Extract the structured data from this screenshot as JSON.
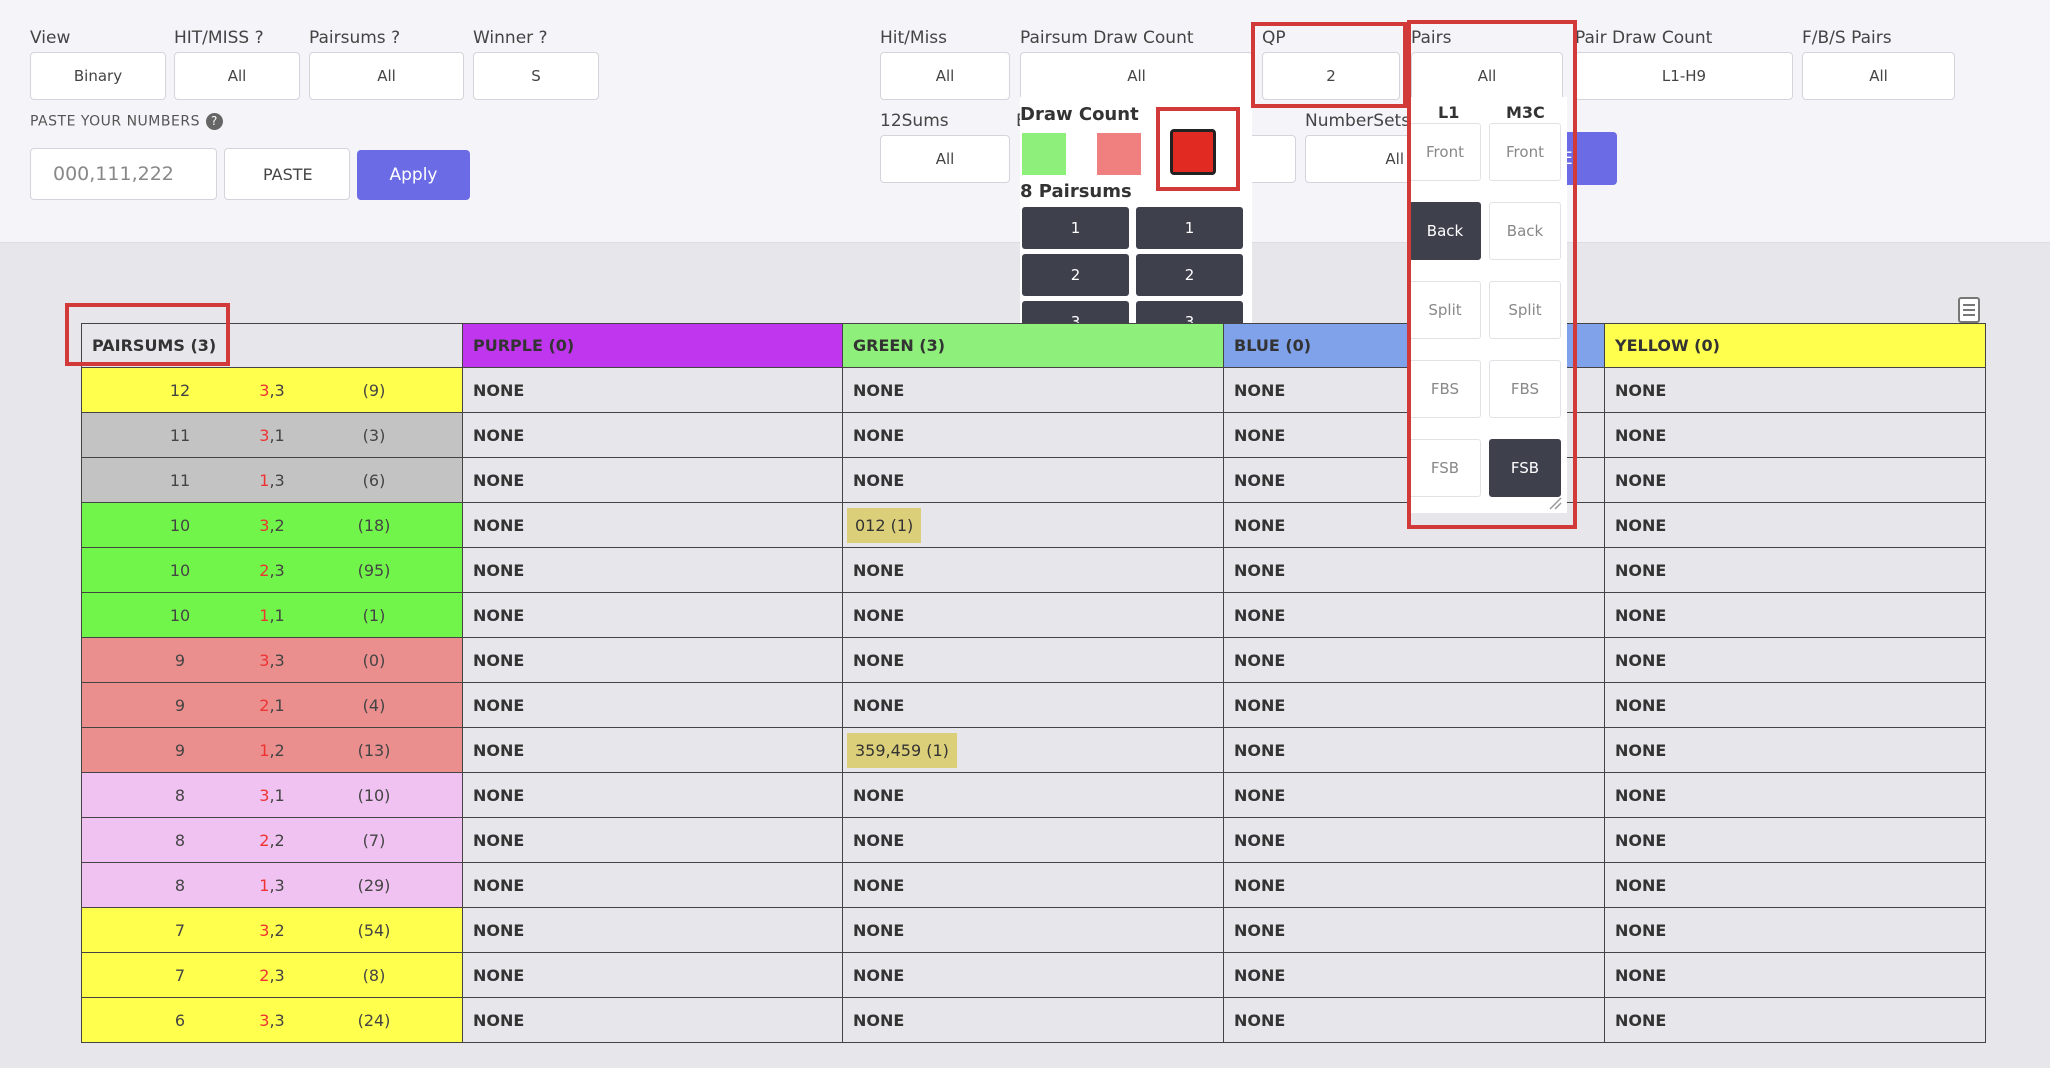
{
  "filters": {
    "view": {
      "label": "View",
      "value": "Binary"
    },
    "hit_miss": {
      "label": "HIT/MISS ?",
      "value": "All"
    },
    "pairsums": {
      "label": "Pairsums ?",
      "value": "All"
    },
    "winner": {
      "label": "Winner ?",
      "value": "S"
    },
    "hit_miss2": {
      "label": "Hit/Miss",
      "value": "All"
    },
    "pairsum_draw_count": {
      "label": "Pairsum Draw Count",
      "value": "All"
    },
    "qp": {
      "label": "QP",
      "value": "2"
    },
    "pairs": {
      "label": "Pairs",
      "value": "All"
    },
    "pair_draw_count": {
      "label": "Pair Draw Count",
      "value": "L1-H9"
    },
    "fbs_pairs": {
      "label": "F/B/S Pairs",
      "value": "All"
    },
    "twelve_sums": {
      "label": "12Sums",
      "value": "All"
    },
    "number_sets": {
      "label": "NumberSets",
      "value": "All"
    },
    "partial_e": "E",
    "partial_button": "E"
  },
  "paste": {
    "label": "PASTE YOUR NUMBERS",
    "placeholder": "000,111,222",
    "paste_button": "PASTE",
    "apply_button": "Apply"
  },
  "draw_count_panel": {
    "title": "Draw Count",
    "swatch_colors": [
      "#8ef07a",
      "#f08080",
      "#e02a22"
    ],
    "pairsums_title": "8 Pairsums",
    "buttons_left": [
      "1",
      "2",
      "3"
    ],
    "buttons_right": [
      "1",
      "2",
      "3"
    ]
  },
  "pairs_panel": {
    "col1": "L1",
    "col2": "M3C",
    "rows": [
      {
        "left": "Front",
        "right": "Front",
        "left_on": false,
        "right_on": false
      },
      {
        "left": "Back",
        "right": "Back",
        "left_on": true,
        "right_on": false
      },
      {
        "left": "Split",
        "right": "Split",
        "left_on": false,
        "right_on": false
      },
      {
        "left": "FBS",
        "right": "FBS",
        "left_on": false,
        "right_on": false
      },
      {
        "left": "FSB",
        "right": "FSB",
        "left_on": false,
        "right_on": true
      }
    ]
  },
  "table": {
    "headers": {
      "pairsums": "PAIRSUMS (3)",
      "purple": "PURPLE (0)",
      "green": "GREEN (3)",
      "blue": "BLUE (0)",
      "yellow": "YELLOW (0)"
    },
    "header_colors": {
      "pairsums": "#e6e6eb",
      "purple": "#c036ee",
      "green": "#8ef07a",
      "blue": "#7fa2ea",
      "yellow": "#ffff4d"
    },
    "rows": [
      {
        "sum": "12",
        "pair_a": "3",
        "pair_b": ",3",
        "count": "(9)",
        "color": "#ffff4d",
        "green": ""
      },
      {
        "sum": "11",
        "pair_a": "3",
        "pair_b": ",1",
        "count": "(3)",
        "color": "#c3c3c3",
        "green": ""
      },
      {
        "sum": "11",
        "pair_a": "1",
        "pair_b": ",3",
        "count": "(6)",
        "color": "#c3c3c3",
        "green": ""
      },
      {
        "sum": "10",
        "pair_a": "3",
        "pair_b": ",2",
        "count": "(18)",
        "color": "#72f54a",
        "green": "012 (1)"
      },
      {
        "sum": "10",
        "pair_a": "2",
        "pair_b": ",3",
        "count": "(95)",
        "color": "#72f54a",
        "green": ""
      },
      {
        "sum": "10",
        "pair_a": "1",
        "pair_b": ",1",
        "count": "(1)",
        "color": "#72f54a",
        "green": ""
      },
      {
        "sum": "9",
        "pair_a": "3",
        "pair_b": ",3",
        "count": "(0)",
        "color": "#ea8e8e",
        "green": ""
      },
      {
        "sum": "9",
        "pair_a": "2",
        "pair_b": ",1",
        "count": "(4)",
        "color": "#ea8e8e",
        "green": ""
      },
      {
        "sum": "9",
        "pair_a": "1",
        "pair_b": ",2",
        "count": "(13)",
        "color": "#ea8e8e",
        "green": "359,459 (1)"
      },
      {
        "sum": "8",
        "pair_a": "3",
        "pair_b": ",1",
        "count": "(10)",
        "color": "#f0c2f2",
        "green": ""
      },
      {
        "sum": "8",
        "pair_a": "2",
        "pair_b": ",2",
        "count": "(7)",
        "color": "#f0c2f2",
        "green": ""
      },
      {
        "sum": "8",
        "pair_a": "1",
        "pair_b": ",3",
        "count": "(29)",
        "color": "#f0c2f2",
        "green": ""
      },
      {
        "sum": "7",
        "pair_a": "3",
        "pair_b": ",2",
        "count": "(54)",
        "color": "#ffff4d",
        "green": ""
      },
      {
        "sum": "7",
        "pair_a": "2",
        "pair_b": ",3",
        "count": "(8)",
        "color": "#ffff4d",
        "green": ""
      },
      {
        "sum": "6",
        "pair_a": "3",
        "pair_b": ",3",
        "count": "(24)",
        "color": "#ffff4d",
        "green": ""
      }
    ],
    "none_text": "NONE"
  }
}
